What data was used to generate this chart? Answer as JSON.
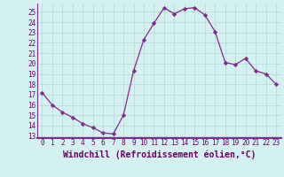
{
  "x": [
    0,
    1,
    2,
    3,
    4,
    5,
    6,
    7,
    8,
    9,
    10,
    11,
    12,
    13,
    14,
    15,
    16,
    17,
    18,
    19,
    20,
    21,
    22,
    23
  ],
  "y": [
    17.2,
    16.0,
    15.3,
    14.8,
    14.2,
    13.8,
    13.3,
    13.2,
    15.0,
    19.3,
    22.3,
    23.9,
    25.4,
    24.8,
    25.3,
    25.4,
    24.7,
    23.1,
    20.1,
    19.9,
    20.5,
    19.3,
    19.0,
    18.0
  ],
  "line_color": "#7b2d8b",
  "marker_color": "#7b2d8b",
  "bg_color": "#d5f0f0",
  "grid_color": "#b0d8d8",
  "border_color": "#7b2d8b",
  "xlim": [
    -0.5,
    23.5
  ],
  "ylim": [
    12.8,
    25.8
  ],
  "yticks": [
    13,
    14,
    15,
    16,
    17,
    18,
    19,
    20,
    21,
    22,
    23,
    24,
    25
  ],
  "xticks": [
    0,
    1,
    2,
    3,
    4,
    5,
    6,
    7,
    8,
    9,
    10,
    11,
    12,
    13,
    14,
    15,
    16,
    17,
    18,
    19,
    20,
    21,
    22,
    23
  ],
  "xlabel": "Windchill (Refroidissement éolien,°C)",
  "font_color": "#660066",
  "tick_fontsize": 5.5,
  "label_fontsize": 7.0
}
